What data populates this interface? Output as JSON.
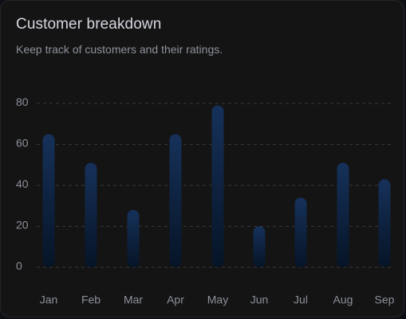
{
  "card": {
    "title": "Customer breakdown",
    "subtitle": "Keep track of customers and their ratings."
  },
  "chart_data": {
    "type": "bar",
    "categories": [
      "Jan",
      "Feb",
      "Mar",
      "Apr",
      "May",
      "Jun",
      "Jul",
      "Aug",
      "Sep"
    ],
    "values": [
      65,
      51,
      28,
      65,
      79,
      20,
      34,
      51,
      43
    ],
    "yticks": [
      0,
      20,
      40,
      60,
      80
    ],
    "ylim": [
      0,
      80
    ],
    "grid": true,
    "colors": {
      "bar_top": "#16315a",
      "bar_bottom": "#061426",
      "grid": "#34373d",
      "tick_label": "#8c909a"
    }
  }
}
